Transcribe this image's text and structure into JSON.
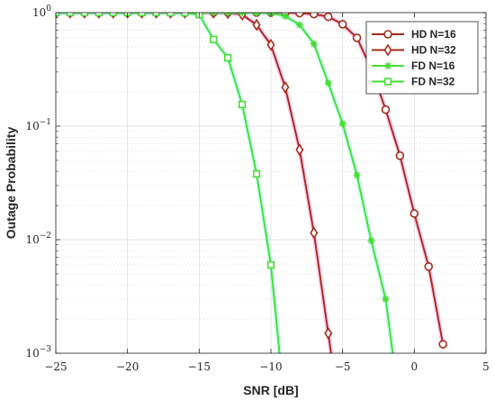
{
  "chart_data": {
    "type": "line",
    "xlabel": "SNR [dB]",
    "ylabel": "Outage Probability",
    "xlim": [
      -25,
      5
    ],
    "ylim": [
      0.001,
      1
    ],
    "yscale": "log",
    "grid": true,
    "legend_position": "top-right",
    "x_ticks": [
      {
        "value": -25,
        "label": "−25"
      },
      {
        "value": -20,
        "label": "−20"
      },
      {
        "value": -15,
        "label": "−15"
      },
      {
        "value": -10,
        "label": "−10"
      },
      {
        "value": -5,
        "label": "−5"
      },
      {
        "value": 0,
        "label": "0"
      },
      {
        "value": 5,
        "label": "5"
      }
    ],
    "y_ticks": [
      {
        "value": 1,
        "base": "10",
        "exp": "0"
      },
      {
        "value": 0.1,
        "base": "10",
        "exp": "−1"
      },
      {
        "value": 0.01,
        "base": "10",
        "exp": "−2"
      },
      {
        "value": 0.001,
        "base": "10",
        "exp": "−3"
      }
    ],
    "series": [
      {
        "name": "HD N=16",
        "color": "#a52a1a",
        "marker": "circle",
        "x": [
          -25,
          -24,
          -23,
          -22,
          -21,
          -20,
          -19,
          -18,
          -17,
          -16,
          -15,
          -14,
          -13,
          -12,
          -11,
          -10,
          -9,
          -8,
          -7,
          -6,
          -5,
          -4,
          -3,
          -2,
          -1,
          0,
          1,
          2
        ],
        "y": [
          1,
          1,
          1,
          1,
          1,
          1,
          1,
          1,
          1,
          1,
          1,
          1,
          1,
          1,
          1,
          1,
          0.998,
          0.99,
          0.97,
          0.92,
          0.79,
          0.6,
          0.32,
          0.14,
          0.055,
          0.017,
          0.0058,
          0.0012
        ]
      },
      {
        "name": "HD N=32",
        "color": "#a52a1a",
        "marker": "diamond",
        "x": [
          -25,
          -24,
          -23,
          -22,
          -21,
          -20,
          -19,
          -18,
          -17,
          -16,
          -15,
          -14,
          -13,
          -12,
          -11,
          -10,
          -9,
          -8,
          -7,
          -6,
          -5.8
        ],
        "y": [
          1,
          1,
          1,
          1,
          1,
          1,
          1,
          1,
          1,
          1,
          1,
          1,
          0.995,
          0.96,
          0.78,
          0.52,
          0.22,
          0.062,
          0.0115,
          0.0015,
          0.001
        ]
      },
      {
        "name": "FD N=16",
        "color": "#44dd33",
        "marker": "asterisk",
        "x": [
          -25,
          -24,
          -23,
          -22,
          -21,
          -20,
          -19,
          -18,
          -17,
          -16,
          -15,
          -14,
          -13,
          -12,
          -11,
          -10,
          -9,
          -8,
          -7,
          -6,
          -5,
          -4,
          -3,
          -2,
          -1.5
        ],
        "y": [
          1,
          1,
          1,
          1,
          1,
          1,
          1,
          1,
          1,
          1,
          1,
          1,
          1,
          1,
          1,
          0.99,
          0.93,
          0.78,
          0.53,
          0.24,
          0.105,
          0.037,
          0.0098,
          0.003,
          0.001
        ]
      },
      {
        "name": "FD N=32",
        "color": "#44dd33",
        "marker": "square",
        "x": [
          -25,
          -24,
          -23,
          -22,
          -21,
          -20,
          -19,
          -18,
          -17,
          -16,
          -15,
          -14,
          -13,
          -12,
          -11,
          -10,
          -9.4
        ],
        "y": [
          1,
          1,
          1,
          1,
          1,
          1,
          1,
          1,
          1,
          0.995,
          0.96,
          0.58,
          0.4,
          0.155,
          0.038,
          0.006,
          0.001
        ]
      }
    ]
  }
}
